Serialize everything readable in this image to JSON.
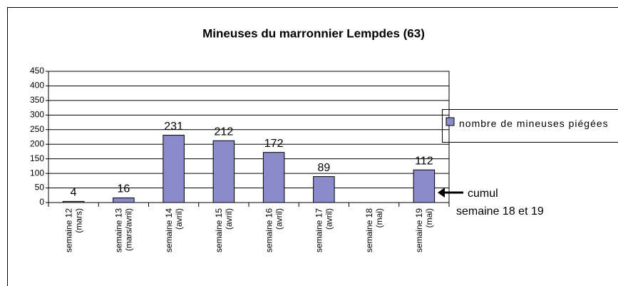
{
  "chart_data": {
    "type": "bar",
    "title": "Mineuses du marronnier Lempdes (63)",
    "categories": [
      [
        "semaine 12",
        "(mars)"
      ],
      [
        "semaine 13",
        "(mars/avril)"
      ],
      [
        "semaine 14",
        "(avril)"
      ],
      [
        "semaine 15",
        "(avril)"
      ],
      [
        "semaine 16",
        "(avril)"
      ],
      [
        "semaine 17",
        "(avril)"
      ],
      [
        "semaine 18",
        "(mai)"
      ],
      [
        "semaine 19",
        "(mai)"
      ]
    ],
    "series": [
      {
        "name": "nombre de mineuses piégées",
        "color": "#8b8bcc",
        "values": [
          4,
          16,
          231,
          212,
          172,
          89,
          null,
          112
        ]
      }
    ],
    "ylim": [
      0,
      450
    ],
    "yticks": [
      0,
      50,
      100,
      150,
      200,
      250,
      300,
      350,
      400,
      450
    ],
    "grid": true,
    "legend": "right",
    "annotation": [
      "cumul",
      "semaine 18 et 19"
    ]
  }
}
